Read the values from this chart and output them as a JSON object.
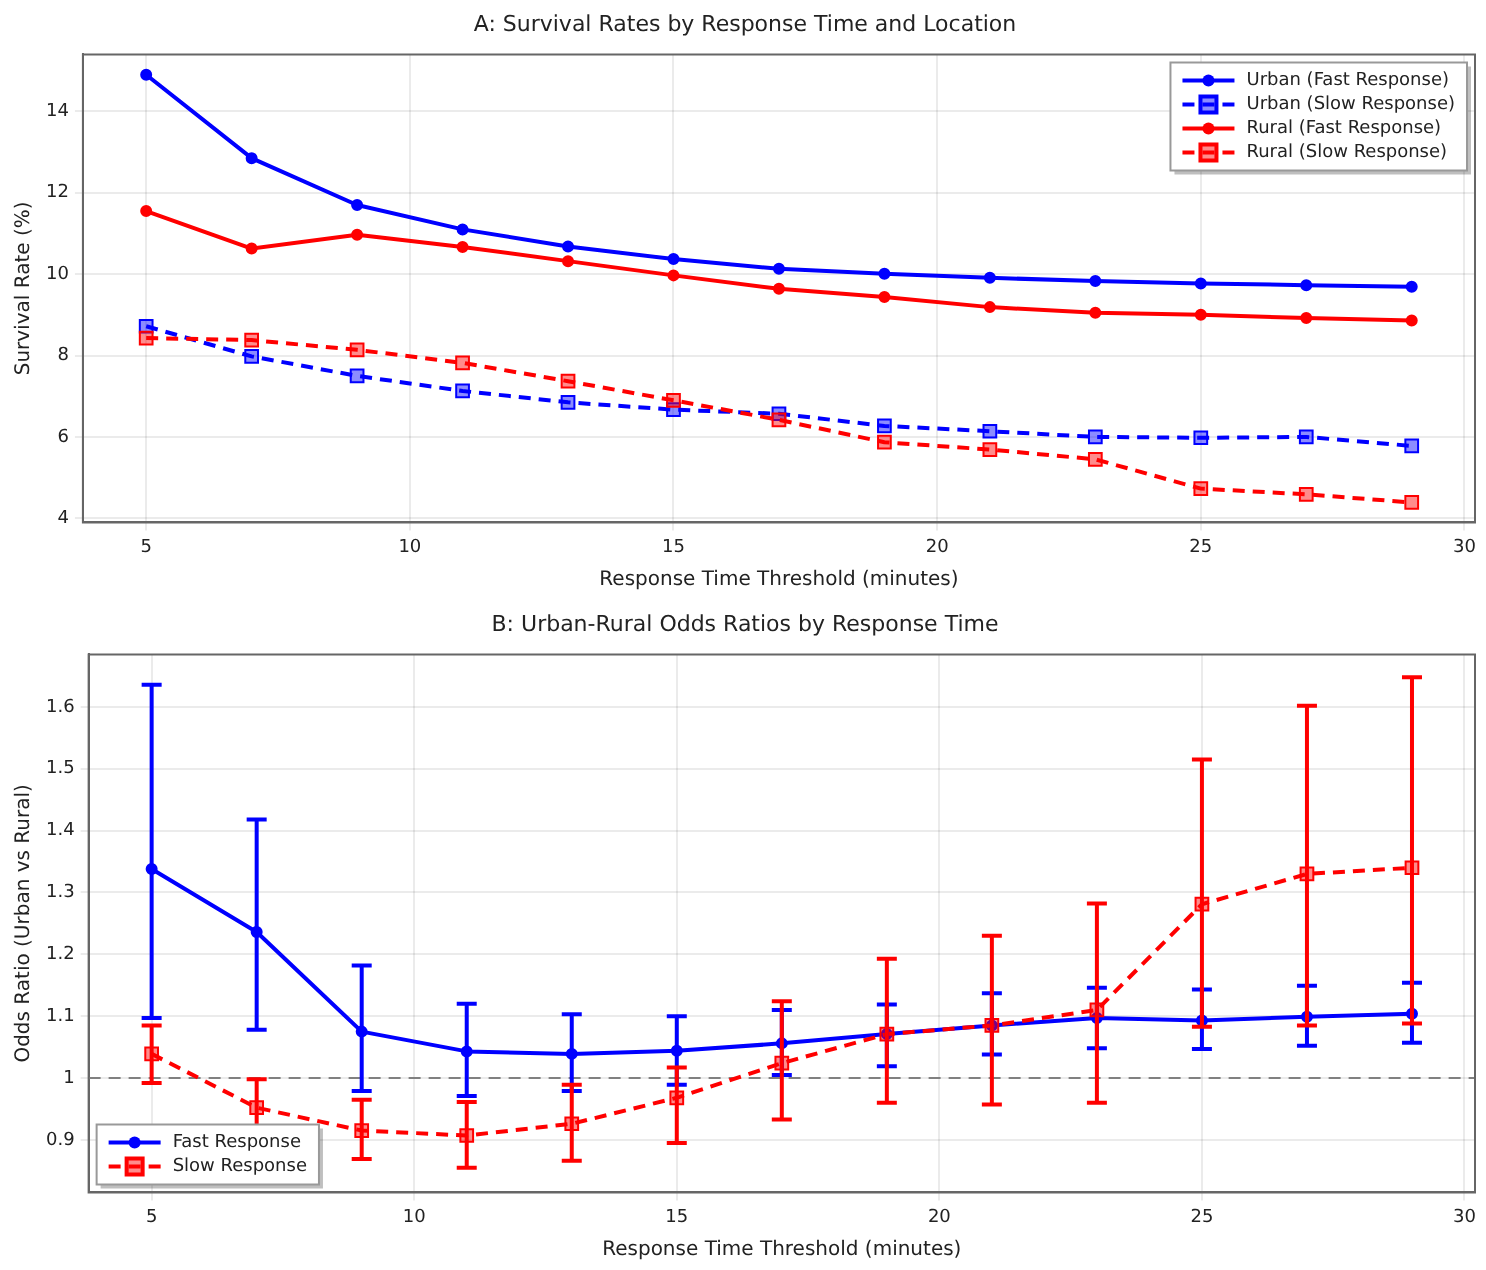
{
  "chart_data": [
    {
      "type": "line",
      "title": "A: Survival Rates by Response Time and Location",
      "xlabel": "Response Time Threshold (minutes)",
      "ylabel": "Survival Rate (%)",
      "x": [
        5,
        7,
        9,
        11,
        13,
        15,
        17,
        19,
        21,
        23,
        25,
        27,
        29
      ],
      "series": [
        {
          "name": "Urban (Fast Response)",
          "color": "#0000ff",
          "marker": "circle",
          "line_style": "solid",
          "values": [
            14.9,
            12.85,
            11.7,
            11.1,
            10.68,
            10.37,
            10.13,
            10.01,
            9.91,
            9.83,
            9.77,
            9.73,
            9.69
          ]
        },
        {
          "name": "Urban (Slow Response)",
          "color": "#0000ff",
          "marker": "square",
          "line_style": "dashed",
          "values": [
            8.72,
            7.98,
            7.5,
            7.13,
            6.85,
            6.67,
            6.57,
            6.27,
            6.14,
            6.0,
            5.98,
            6.0,
            5.78
          ]
        },
        {
          "name": "Rural (Fast Response)",
          "color": "#ff0000",
          "marker": "circle",
          "line_style": "solid",
          "values": [
            11.55,
            10.63,
            10.97,
            10.67,
            10.32,
            9.97,
            9.64,
            9.44,
            9.19,
            9.05,
            9.0,
            8.92,
            8.86
          ]
        },
        {
          "name": "Rural (Slow Response)",
          "color": "#ff0000",
          "marker": "square",
          "line_style": "dashed",
          "values": [
            8.43,
            8.38,
            8.14,
            7.82,
            7.37,
            6.9,
            6.42,
            5.87,
            5.69,
            5.45,
            4.73,
            4.59,
            4.39
          ]
        }
      ],
      "xlim": [
        3.8,
        30.2
      ],
      "xticks": [
        5,
        10,
        15,
        20,
        25,
        30
      ],
      "ylim": [
        3.9,
        15.4
      ],
      "yticks": [
        4,
        6,
        8,
        10,
        12,
        14
      ],
      "grid": true,
      "legend": "top right"
    },
    {
      "type": "line",
      "title": "B: Urban-Rural Odds Ratios by Response Time",
      "xlabel": "Response Time Threshold (minutes)",
      "ylabel": "Odds Ratio (Urban vs Rural)",
      "x": [
        5,
        7,
        9,
        11,
        13,
        15,
        17,
        19,
        21,
        23,
        25,
        27,
        29
      ],
      "series": [
        {
          "name": "Fast Response",
          "color": "#0000ff",
          "marker": "circle",
          "line_style": "solid",
          "values": [
            1.338,
            1.236,
            1.075,
            1.043,
            1.039,
            1.044,
            1.056,
            1.071,
            1.085,
            1.097,
            1.093,
            1.099,
            1.104
          ],
          "errors": [
            [
              1.097,
              1.636
            ],
            [
              1.078,
              1.418
            ],
            [
              0.979,
              1.182
            ],
            [
              0.971,
              1.12
            ],
            [
              0.979,
              1.103
            ],
            [
              0.989,
              1.1
            ],
            [
              1.005,
              1.11
            ],
            [
              1.019,
              1.119
            ],
            [
              1.038,
              1.137
            ],
            [
              1.048,
              1.146
            ],
            [
              1.047,
              1.143
            ],
            [
              1.052,
              1.149
            ],
            [
              1.057,
              1.154
            ]
          ]
        },
        {
          "name": "Slow Response",
          "color": "#ff0000",
          "marker": "square",
          "line_style": "dashed",
          "values": [
            1.039,
            0.952,
            0.915,
            0.907,
            0.926,
            0.968,
            1.024,
            1.071,
            1.085,
            1.11,
            1.281,
            1.33,
            1.34
          ],
          "errors": [
            [
              0.992,
              1.085
            ],
            [
              0.905,
              0.998
            ],
            [
              0.869,
              0.965
            ],
            [
              0.855,
              0.961
            ],
            [
              0.866,
              0.989
            ],
            [
              0.895,
              1.017
            ],
            [
              0.933,
              1.124
            ],
            [
              0.96,
              1.193
            ],
            [
              0.957,
              1.23
            ],
            [
              0.96,
              1.282
            ],
            [
              1.083,
              1.515
            ],
            [
              1.085,
              1.602
            ],
            [
              1.088,
              1.648
            ]
          ]
        }
      ],
      "ref_lines": [
        {
          "axis": "y",
          "value": 1.0,
          "color": "#808080",
          "line_style": "dashed"
        }
      ],
      "xlim": [
        3.8,
        30.2
      ],
      "xticks": [
        5,
        10,
        15,
        20,
        25,
        30
      ],
      "ylim": [
        0.815,
        1.685
      ],
      "yticks": [
        0.9,
        1.0,
        1.1,
        1.2,
        1.3,
        1.4,
        1.5,
        1.6
      ],
      "grid": true,
      "legend": "bottom left"
    }
  ]
}
